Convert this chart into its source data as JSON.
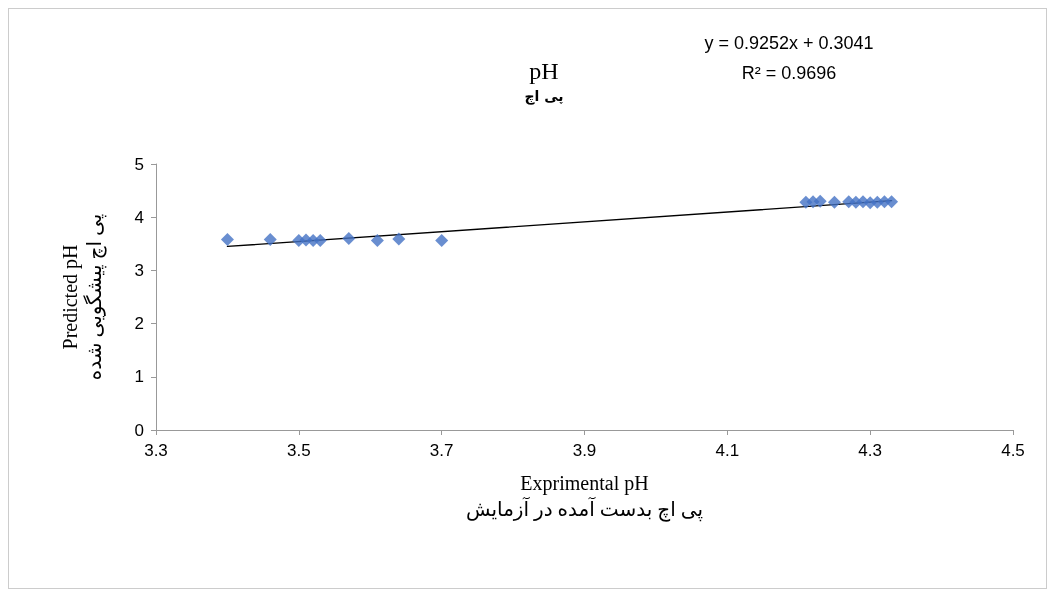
{
  "chart_data": {
    "type": "scatter",
    "title": "pH",
    "subtitle": "پی اچ",
    "xlabel": "Exprimental pH\nپی اچ بدست آمده در آزمایش",
    "ylabel": "Predicted pH\nپی اچ پیشگویی شده",
    "annotations": [
      "y = 0.9252x + 0.3041",
      "R² = 0.9696"
    ],
    "series": [
      {
        "color": "#4472c4",
        "marker": "diamond",
        "x": [
          3.4,
          3.46,
          3.5,
          3.51,
          3.52,
          3.53,
          3.57,
          3.61,
          3.64,
          3.7,
          4.21,
          4.22,
          4.23,
          4.25,
          4.27,
          4.28,
          4.29,
          4.3,
          4.31,
          4.32,
          4.33
        ],
        "values": [
          3.58,
          3.58,
          3.56,
          3.57,
          3.56,
          3.56,
          3.6,
          3.56,
          3.59,
          3.56,
          4.28,
          4.29,
          4.3,
          4.28,
          4.29,
          4.28,
          4.29,
          4.27,
          4.28,
          4.29,
          4.29
        ]
      },
      {
        "type": "line",
        "color": "#000000",
        "marker": "none",
        "x": [
          3.4,
          4.33
        ],
        "values": [
          3.45,
          4.31
        ]
      }
    ],
    "xlim": [
      3.3,
      4.5
    ],
    "xticks": [
      3.3,
      3.5,
      3.7,
      3.9,
      4.1,
      4.3,
      4.5
    ],
    "ylim": [
      0,
      5
    ],
    "yticks": [
      0,
      1,
      2,
      3,
      4,
      5
    ],
    "grid": false
  }
}
